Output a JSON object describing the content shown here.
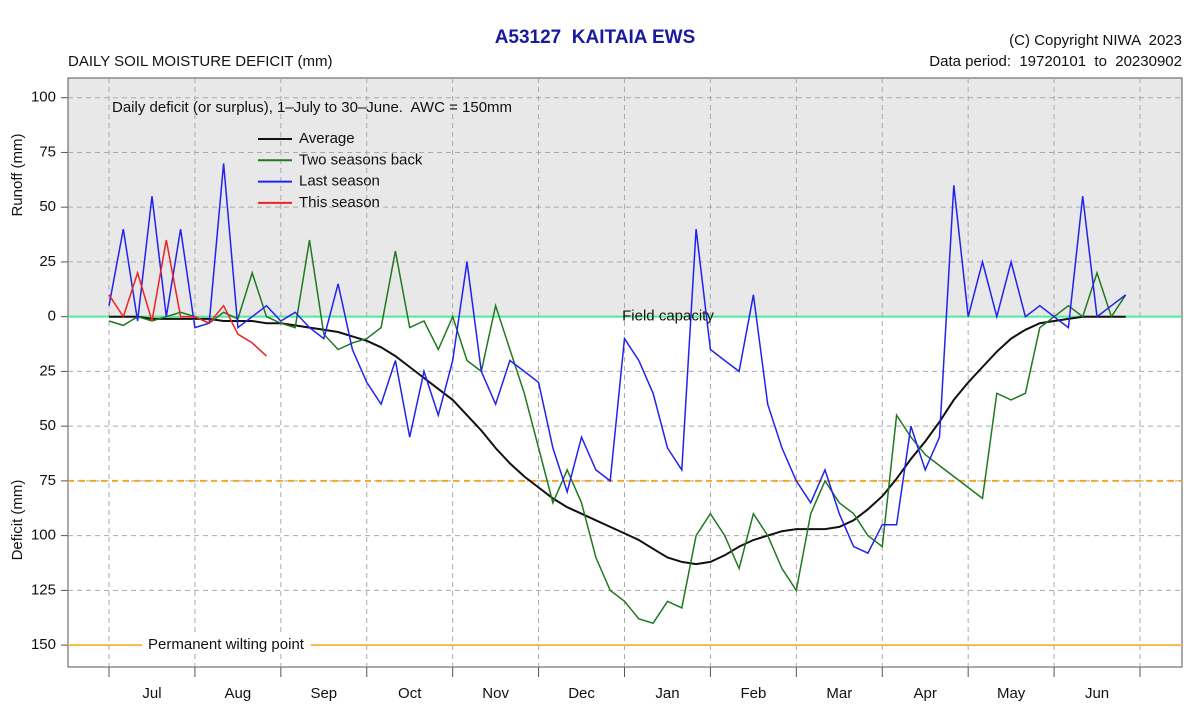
{
  "chart_data": {
    "type": "line",
    "title": "A53127  KAITAIA EWS",
    "subtitle": "DAILY SOIL MOISTURE DEFICIT (mm)",
    "copyright": "(C) Copyright NIWA  2023",
    "data_period": "Data period:  19720101  to  20230902",
    "note": "Daily deficit (or surplus), 1–July to 30–June.  AWC = 150mm",
    "y_label_top": "Runoff (mm)",
    "y_label_bottom": "Deficit (mm)",
    "categories": [
      "Jul",
      "Aug",
      "Sep",
      "Oct",
      "Nov",
      "Dec",
      "Jan",
      "Feb",
      "Mar",
      "Apr",
      "May",
      "Jun"
    ],
    "ylim": [
      -160,
      109
    ],
    "yticks": [
      100,
      75,
      50,
      25,
      0,
      {
        "value": -25,
        "label": "25"
      },
      {
        "value": -50,
        "label": "50"
      },
      {
        "value": -75,
        "label": "75"
      },
      {
        "value": -100,
        "label": "100"
      },
      {
        "value": -125,
        "label": "125"
      },
      {
        "value": -150,
        "label": "150"
      }
    ],
    "grid": true,
    "reference_lines": [
      {
        "value": 0,
        "label": "Field capacity",
        "color": "#55e89a"
      },
      {
        "value": -75,
        "color": "#f5a623",
        "dashed": true
      },
      {
        "value": -150,
        "label": "Permanent wilting point",
        "color": "#f5b94a"
      }
    ],
    "series": [
      {
        "name": "Average",
        "color": "#111111",
        "values": [
          [
            0,
            0,
            0,
            -1,
            -1,
            -1
          ],
          [
            -1,
            -1,
            -2,
            -2,
            -2,
            -3
          ],
          [
            -3,
            -4,
            -5,
            -6,
            -7,
            -9
          ],
          [
            -11,
            -14,
            -18,
            -23,
            -28,
            -33
          ],
          [
            -38,
            -45,
            -52,
            -60,
            -67,
            -73
          ],
          [
            -78,
            -83,
            -87,
            -90,
            -93,
            -96
          ],
          [
            -99,
            -102,
            -106,
            -110,
            -112,
            -113
          ],
          [
            -112,
            -109,
            -105,
            -102,
            -100,
            -98
          ],
          [
            -97,
            -97,
            -97,
            -96,
            -93,
            -88
          ],
          [
            -82,
            -74,
            -65,
            -57,
            -48,
            -38
          ],
          [
            -30,
            -23,
            -16,
            -10,
            -6,
            -3
          ],
          [
            -2,
            -1,
            0,
            0,
            0,
            0
          ]
        ]
      },
      {
        "name": "Two seasons back",
        "color": "#1f7a1f",
        "values": [
          [
            -2,
            -4,
            0,
            -2,
            0,
            2
          ],
          [
            0,
            -3,
            2,
            -1,
            20,
            0
          ],
          [
            -3,
            -5,
            35,
            -8,
            -15,
            -12
          ],
          [
            -10,
            -5,
            30,
            -5,
            -2,
            -15
          ],
          [
            0,
            -20,
            -25,
            5,
            -15,
            -35
          ],
          [
            -60,
            -85,
            -70,
            -85,
            -110,
            -125
          ],
          [
            -130,
            -138,
            -140,
            -130,
            -133,
            -100
          ],
          [
            -90,
            -100,
            -115,
            -90,
            -100,
            -115
          ],
          [
            -125,
            -90,
            -75,
            -85,
            -90,
            -100
          ],
          [
            -105,
            -45,
            -55,
            -63,
            -68,
            -73
          ],
          [
            -78,
            -83,
            -35,
            -38,
            -35,
            -5
          ],
          [
            0,
            5,
            0,
            20,
            0,
            10
          ]
        ]
      },
      {
        "name": "Last season",
        "color": "#2222ee",
        "values": [
          [
            5,
            40,
            -2,
            55,
            0,
            40
          ],
          [
            -5,
            -3,
            70,
            -5,
            0,
            5
          ],
          [
            -2,
            2,
            -5,
            -10,
            15,
            -15
          ],
          [
            -30,
            -40,
            -20,
            -55,
            -25,
            -45
          ],
          [
            -20,
            25,
            -25,
            -40,
            -20,
            -25
          ],
          [
            -30,
            -60,
            -80,
            -55,
            -70,
            -75
          ],
          [
            -10,
            -20,
            -35,
            -60,
            -70,
            40
          ],
          [
            -15,
            -20,
            -25,
            10,
            -40,
            -60
          ],
          [
            -75,
            -85,
            -70,
            -90,
            -105,
            -108
          ],
          [
            -95,
            -95,
            -50,
            -70,
            -55,
            60
          ],
          [
            0,
            25,
            0,
            25,
            0,
            5
          ],
          [
            0,
            -5,
            55,
            0,
            5,
            10
          ]
        ]
      },
      {
        "name": "This season",
        "color": "#ee2222",
        "values": [
          [
            10,
            0,
            20,
            -2,
            35,
            0
          ],
          [
            0,
            -3,
            5,
            -8,
            -12,
            -18
          ],
          [
            null,
            null,
            null,
            null,
            null,
            null
          ],
          [
            null,
            null,
            null,
            null,
            null,
            null
          ],
          [
            null,
            null,
            null,
            null,
            null,
            null
          ],
          [
            null,
            null,
            null,
            null,
            null,
            null
          ],
          [
            null,
            null,
            null,
            null,
            null,
            null
          ],
          [
            null,
            null,
            null,
            null,
            null,
            null
          ],
          [
            null,
            null,
            null,
            null,
            null,
            null
          ],
          [
            null,
            null,
            null,
            null,
            null,
            null
          ],
          [
            null,
            null,
            null,
            null,
            null,
            null
          ],
          [
            null,
            null,
            null,
            null,
            null,
            null
          ]
        ]
      }
    ]
  }
}
